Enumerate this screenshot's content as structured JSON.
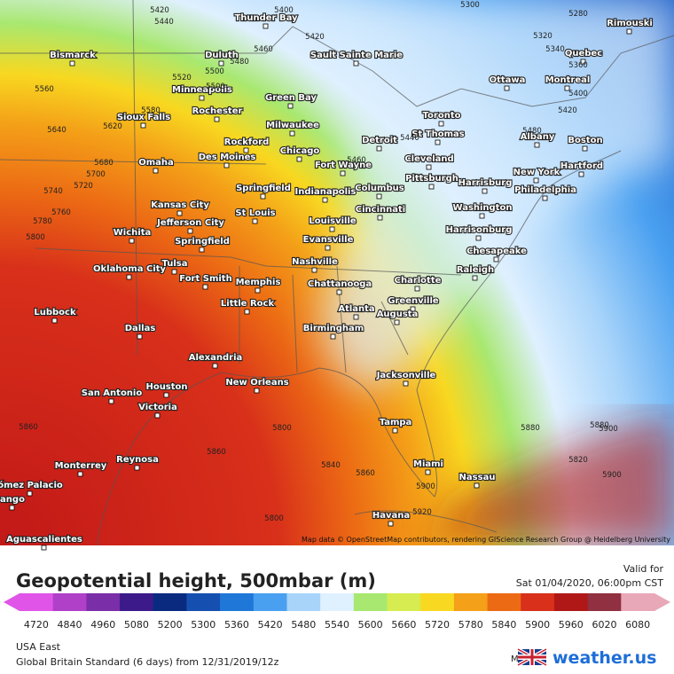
{
  "map": {
    "cities": [
      "Thunder Bay",
      "Bismarck",
      "Duluth",
      "Sault Sainte Marie",
      "Ottawa",
      "Montreal",
      "Quebec",
      "Rimouski",
      "Minneapolis",
      "Rochester",
      "Green Bay",
      "Sioux Falls",
      "Milwaukee",
      "Toronto",
      "St Thomas",
      "Albany",
      "Boston",
      "Detroit",
      "Rockford",
      "Chicago",
      "Des Moines",
      "Omaha",
      "Fort Wayne",
      "Cleveland",
      "New York",
      "Hartford",
      "Pittsburgh",
      "Harrisburg",
      "Philadelphia",
      "Springfield",
      "Indianapolis",
      "Columbus",
      "Kansas City",
      "Cincinnati",
      "Washington",
      "Jefferson City",
      "St Louis",
      "Louisville",
      "Harrisonburg",
      "Wichita",
      "Springfield",
      "Evansville",
      "Chesapeake",
      "Oklahoma City",
      "Tulsa",
      "Nashville",
      "Raleigh",
      "Fort Smith",
      "Memphis",
      "Chattanooga",
      "Charlotte",
      "Greenville",
      "Little Rock",
      "Atlanta",
      "Augusta",
      "Lubbock",
      "Dallas",
      "Birmingham",
      "Alexandria",
      "Jacksonville",
      "New Orleans",
      "San Antonio",
      "Houston",
      "Victoria",
      "Tampa",
      "Reynosa",
      "Monterrey",
      "Miami",
      "Nassau",
      "ómez Palacio",
      "ango",
      "Havana",
      "Aguascalientes"
    ],
    "contour_labels": [
      "5420",
      "5440",
      "5400",
      "5300",
      "5280",
      "5460",
      "5480",
      "5420",
      "5500",
      "5520",
      "5500",
      "5560",
      "5640",
      "5620",
      "5680",
      "5700",
      "5720",
      "5740",
      "5760",
      "5780",
      "5800",
      "5320",
      "5340",
      "5360",
      "5400",
      "5420",
      "5460",
      "5440",
      "5480",
      "5580",
      "5860",
      "5880",
      "5900",
      "5920",
      "5800",
      "5860",
      "5840",
      "5900",
      "5860",
      "5820",
      "5800",
      "5880",
      "5900"
    ],
    "attribution": "Map data © OpenStreetMap contributors, rendering GIScience Research Group @ Heidelberg University"
  },
  "panel": {
    "title": "Geopotential height, 500mbar (m)",
    "valid_label": "Valid for",
    "valid_time": "Sat 01/04/2020, 06:00pm CST",
    "region": "USA East",
    "model_run": "Global Britain Standard (6 days) from  12/31/2019/12z",
    "model_label": "Model:",
    "brand": "weather.us"
  },
  "legend": {
    "ticks": [
      4720,
      4840,
      4960,
      5080,
      5200,
      5300,
      5360,
      5420,
      5480,
      5540,
      5600,
      5660,
      5720,
      5780,
      5840,
      5900,
      5960,
      6020,
      6080
    ],
    "colors": [
      "#e055e8",
      "#b040c8",
      "#7a2ea8",
      "#3c1a8a",
      "#0a2a80",
      "#1550b0",
      "#1f78d8",
      "#4aa0f0",
      "#a8d4fa",
      "#dff0ff",
      "#a8e870",
      "#d6ec50",
      "#f8d820",
      "#f4a018",
      "#ec6a14",
      "#d8301a",
      "#b01818",
      "#903040",
      "#e8a8b8"
    ]
  }
}
